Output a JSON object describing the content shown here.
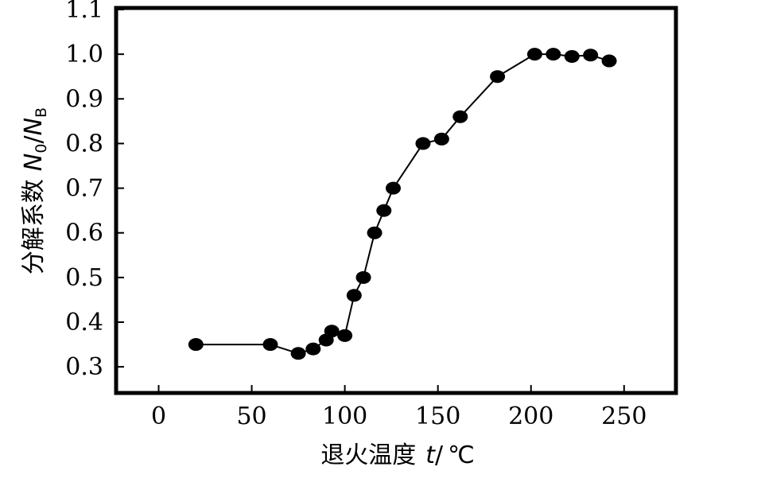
{
  "chart_data": {
    "type": "line",
    "title": "",
    "xlabel": {
      "text": "退火温度",
      "var": "t",
      "sep": "/",
      "unit": "℃"
    },
    "ylabel": {
      "text": "分解系数",
      "num": "N",
      "num_sub": "0",
      "sep": "/",
      "den": "N",
      "den_sub": "B"
    },
    "xlim": [
      -22,
      277
    ],
    "ylim": [
      0.245,
      1.1
    ],
    "xticks": [
      0,
      50,
      100,
      150,
      200,
      250
    ],
    "xtick_labels": [
      "0",
      "50",
      "100",
      "150",
      "200",
      "250"
    ],
    "yticks": [
      0.3,
      0.4,
      0.5,
      0.6,
      0.7,
      0.8,
      0.9,
      1.0,
      1.1
    ],
    "ytick_labels": [
      "0.3",
      "0.4",
      "0.5",
      "0.6",
      "0.7",
      "0.8",
      "0.9",
      "1.0",
      "1.1"
    ],
    "grid": false,
    "legend": "none",
    "colors": {
      "line": "#000000",
      "marker": "#000000"
    },
    "series": [
      {
        "x": [
          20,
          60,
          75,
          83,
          90,
          93,
          100,
          105,
          110,
          116,
          121,
          126,
          142,
          152,
          162,
          182,
          202,
          212,
          222,
          232,
          242
        ],
        "y": [
          0.35,
          0.35,
          0.33,
          0.34,
          0.36,
          0.38,
          0.37,
          0.46,
          0.5,
          0.6,
          0.65,
          0.7,
          0.8,
          0.81,
          0.86,
          0.95,
          1.0,
          1.0,
          0.995,
          0.998,
          0.985
        ]
      }
    ]
  }
}
